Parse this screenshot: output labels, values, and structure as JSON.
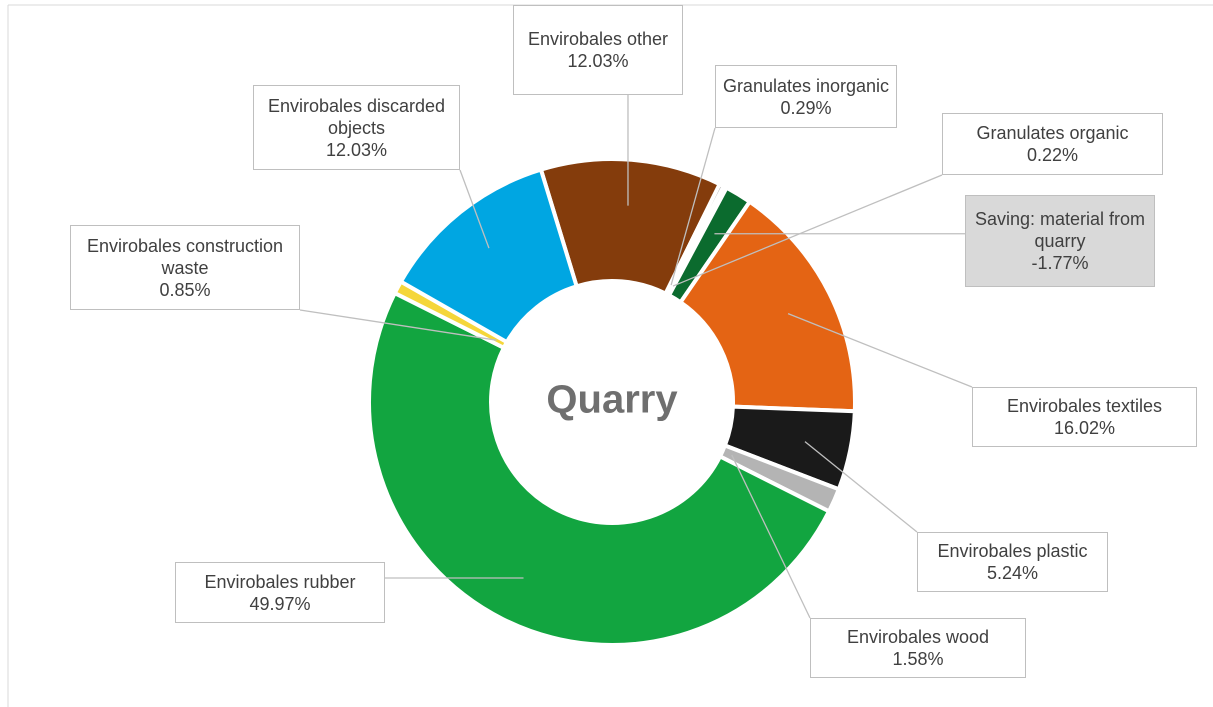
{
  "chart_data": {
    "type": "donut",
    "center_label": "Quarry",
    "categories": [
      "Envirobales other",
      "Granulates inorganic",
      "Granulates organic",
      "Saving: material from quarry",
      "Envirobales textiles",
      "Envirobales plastic",
      "Envirobales wood",
      "Envirobales rubber",
      "Envirobales construction waste",
      "Envirobales discarded objects"
    ],
    "values": [
      12.03,
      0.29,
      0.22,
      -1.77,
      16.02,
      5.24,
      1.58,
      49.97,
      0.85,
      12.03
    ],
    "value_labels": [
      "12.03%",
      "0.29%",
      "0.22%",
      "-1.77%",
      "16.02%",
      "5.24%",
      "1.58%",
      "49.97%",
      "0.85%",
      "12.03%"
    ],
    "colors": [
      "#843c0c",
      "#7f7f7f",
      "#375623",
      "#0b6b2e",
      "#e46414",
      "#1a1a1a",
      "#b4b4b4",
      "#12a540",
      "#f5d63a",
      "#00a6e2"
    ]
  }
}
